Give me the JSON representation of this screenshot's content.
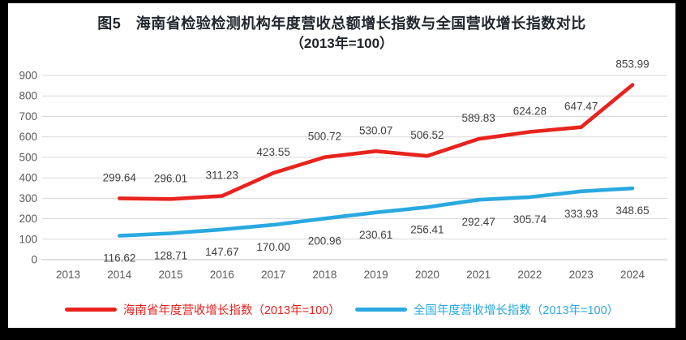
{
  "figure": {
    "frame_color": "#000000",
    "panel_color": "#ffffff"
  },
  "chart_data": {
    "type": "line",
    "title": "图5　海南省检验检测机构年度营收总额增长指数与全国营收增长指数对比",
    "subtitle": "（2013年=100）",
    "categories": [
      "2013",
      "2014",
      "2015",
      "2016",
      "2017",
      "2018",
      "2019",
      "2020",
      "2021",
      "2022",
      "2023",
      "2024"
    ],
    "series": [
      {
        "name": "海南省年度营收增长指数（2013年=100）",
        "color": "#e8231d",
        "label_position": "above",
        "values": [
          null,
          299.64,
          296.01,
          311.23,
          423.55,
          500.72,
          530.07,
          506.52,
          589.83,
          624.28,
          647.47,
          853.99
        ]
      },
      {
        "name": "全国年度营收增长指数（2013年=100）",
        "color": "#29a9e0",
        "label_position": "below",
        "values": [
          null,
          116.62,
          128.71,
          147.67,
          170.0,
          200.96,
          230.61,
          256.41,
          292.47,
          305.74,
          333.93,
          348.65
        ]
      }
    ],
    "y_ticks": [
      0,
      100,
      200,
      300,
      400,
      500,
      600,
      700,
      800,
      900
    ],
    "ylim": [
      0,
      900
    ],
    "grid": "horizontal",
    "legend_position": "bottom",
    "axis_text_color": "#595959",
    "data_label_color": "#404040",
    "gridline_color": "#d9d9d9",
    "zero_line_color": "#bfbfbf"
  }
}
